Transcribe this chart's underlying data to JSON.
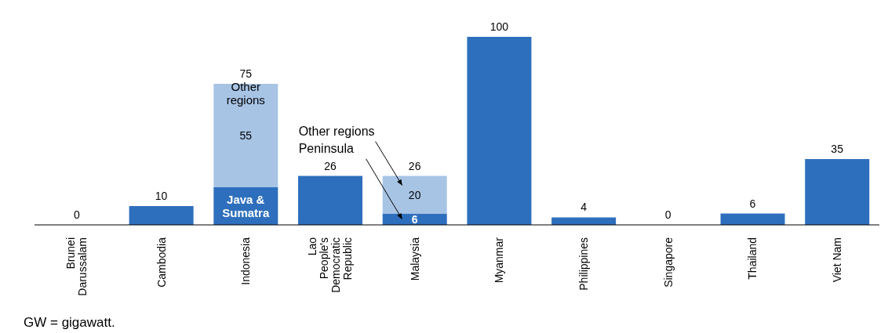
{
  "chart_data": {
    "type": "bar",
    "stacked": true,
    "categories": [
      "Brunei Darussalam",
      "Cambodia",
      "Indonesia",
      "Lao People's Democratic Republic",
      "Malaysia",
      "Myanmar",
      "Philippines",
      "Singapore",
      "Thailand",
      "Viet Nam"
    ],
    "series": [
      {
        "color": "#2e6fbd",
        "values": [
          0,
          10,
          20,
          26,
          6,
          100,
          4,
          0,
          6,
          35
        ],
        "value_labels": [
          null,
          null,
          null,
          null,
          "6",
          null,
          null,
          null,
          null,
          null
        ]
      },
      {
        "color": "#a7c4e5",
        "values": [
          null,
          null,
          55,
          null,
          20,
          null,
          null,
          null,
          null,
          null
        ],
        "value_labels": [
          null,
          null,
          "55",
          null,
          "20",
          null,
          null,
          null,
          null,
          null
        ]
      }
    ],
    "totals": [
      "0",
      "10",
      "75",
      "26",
      "26",
      "100",
      "4",
      "0",
      "6",
      "35"
    ],
    "annotations": [
      "Java & Sumatra",
      "Other regions",
      "Other regions",
      "Peninsula",
      "GW = gigawatt."
    ],
    "legend": false,
    "grid": false
  }
}
